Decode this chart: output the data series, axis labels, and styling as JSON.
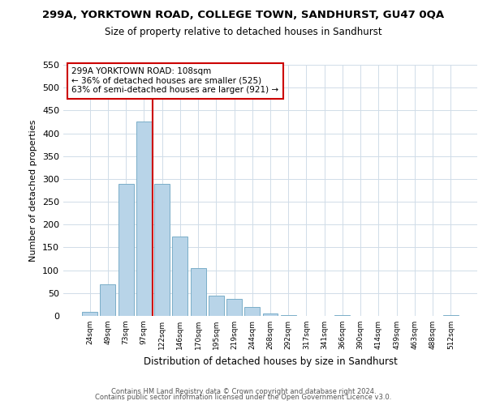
{
  "title": "299A, YORKTOWN ROAD, COLLEGE TOWN, SANDHURST, GU47 0QA",
  "subtitle": "Size of property relative to detached houses in Sandhurst",
  "xlabel": "Distribution of detached houses by size in Sandhurst",
  "ylabel": "Number of detached properties",
  "bar_labels": [
    "24sqm",
    "49sqm",
    "73sqm",
    "97sqm",
    "122sqm",
    "146sqm",
    "170sqm",
    "195sqm",
    "219sqm",
    "244sqm",
    "268sqm",
    "292sqm",
    "317sqm",
    "341sqm",
    "366sqm",
    "390sqm",
    "414sqm",
    "439sqm",
    "463sqm",
    "488sqm",
    "512sqm"
  ],
  "bar_values": [
    8,
    70,
    290,
    425,
    290,
    173,
    105,
    44,
    38,
    20,
    5,
    1,
    0,
    0,
    1,
    0,
    0,
    0,
    0,
    0,
    1
  ],
  "bar_color": "#b8d4e8",
  "bar_edge_color": "#7aaec8",
  "vline_x": 3.5,
  "vline_color": "#cc0000",
  "annotation_line1": "299A YORKTOWN ROAD: 108sqm",
  "annotation_line2": "← 36% of detached houses are smaller (525)",
  "annotation_line3": "63% of semi-detached houses are larger (921) →",
  "box_edge_color": "#cc0000",
  "ylim": [
    0,
    550
  ],
  "yticks": [
    0,
    50,
    100,
    150,
    200,
    250,
    300,
    350,
    400,
    450,
    500,
    550
  ],
  "footer1": "Contains HM Land Registry data © Crown copyright and database right 2024.",
  "footer2": "Contains public sector information licensed under the Open Government Licence v3.0.",
  "bg_color": "#ffffff",
  "grid_color": "#d0dce8"
}
